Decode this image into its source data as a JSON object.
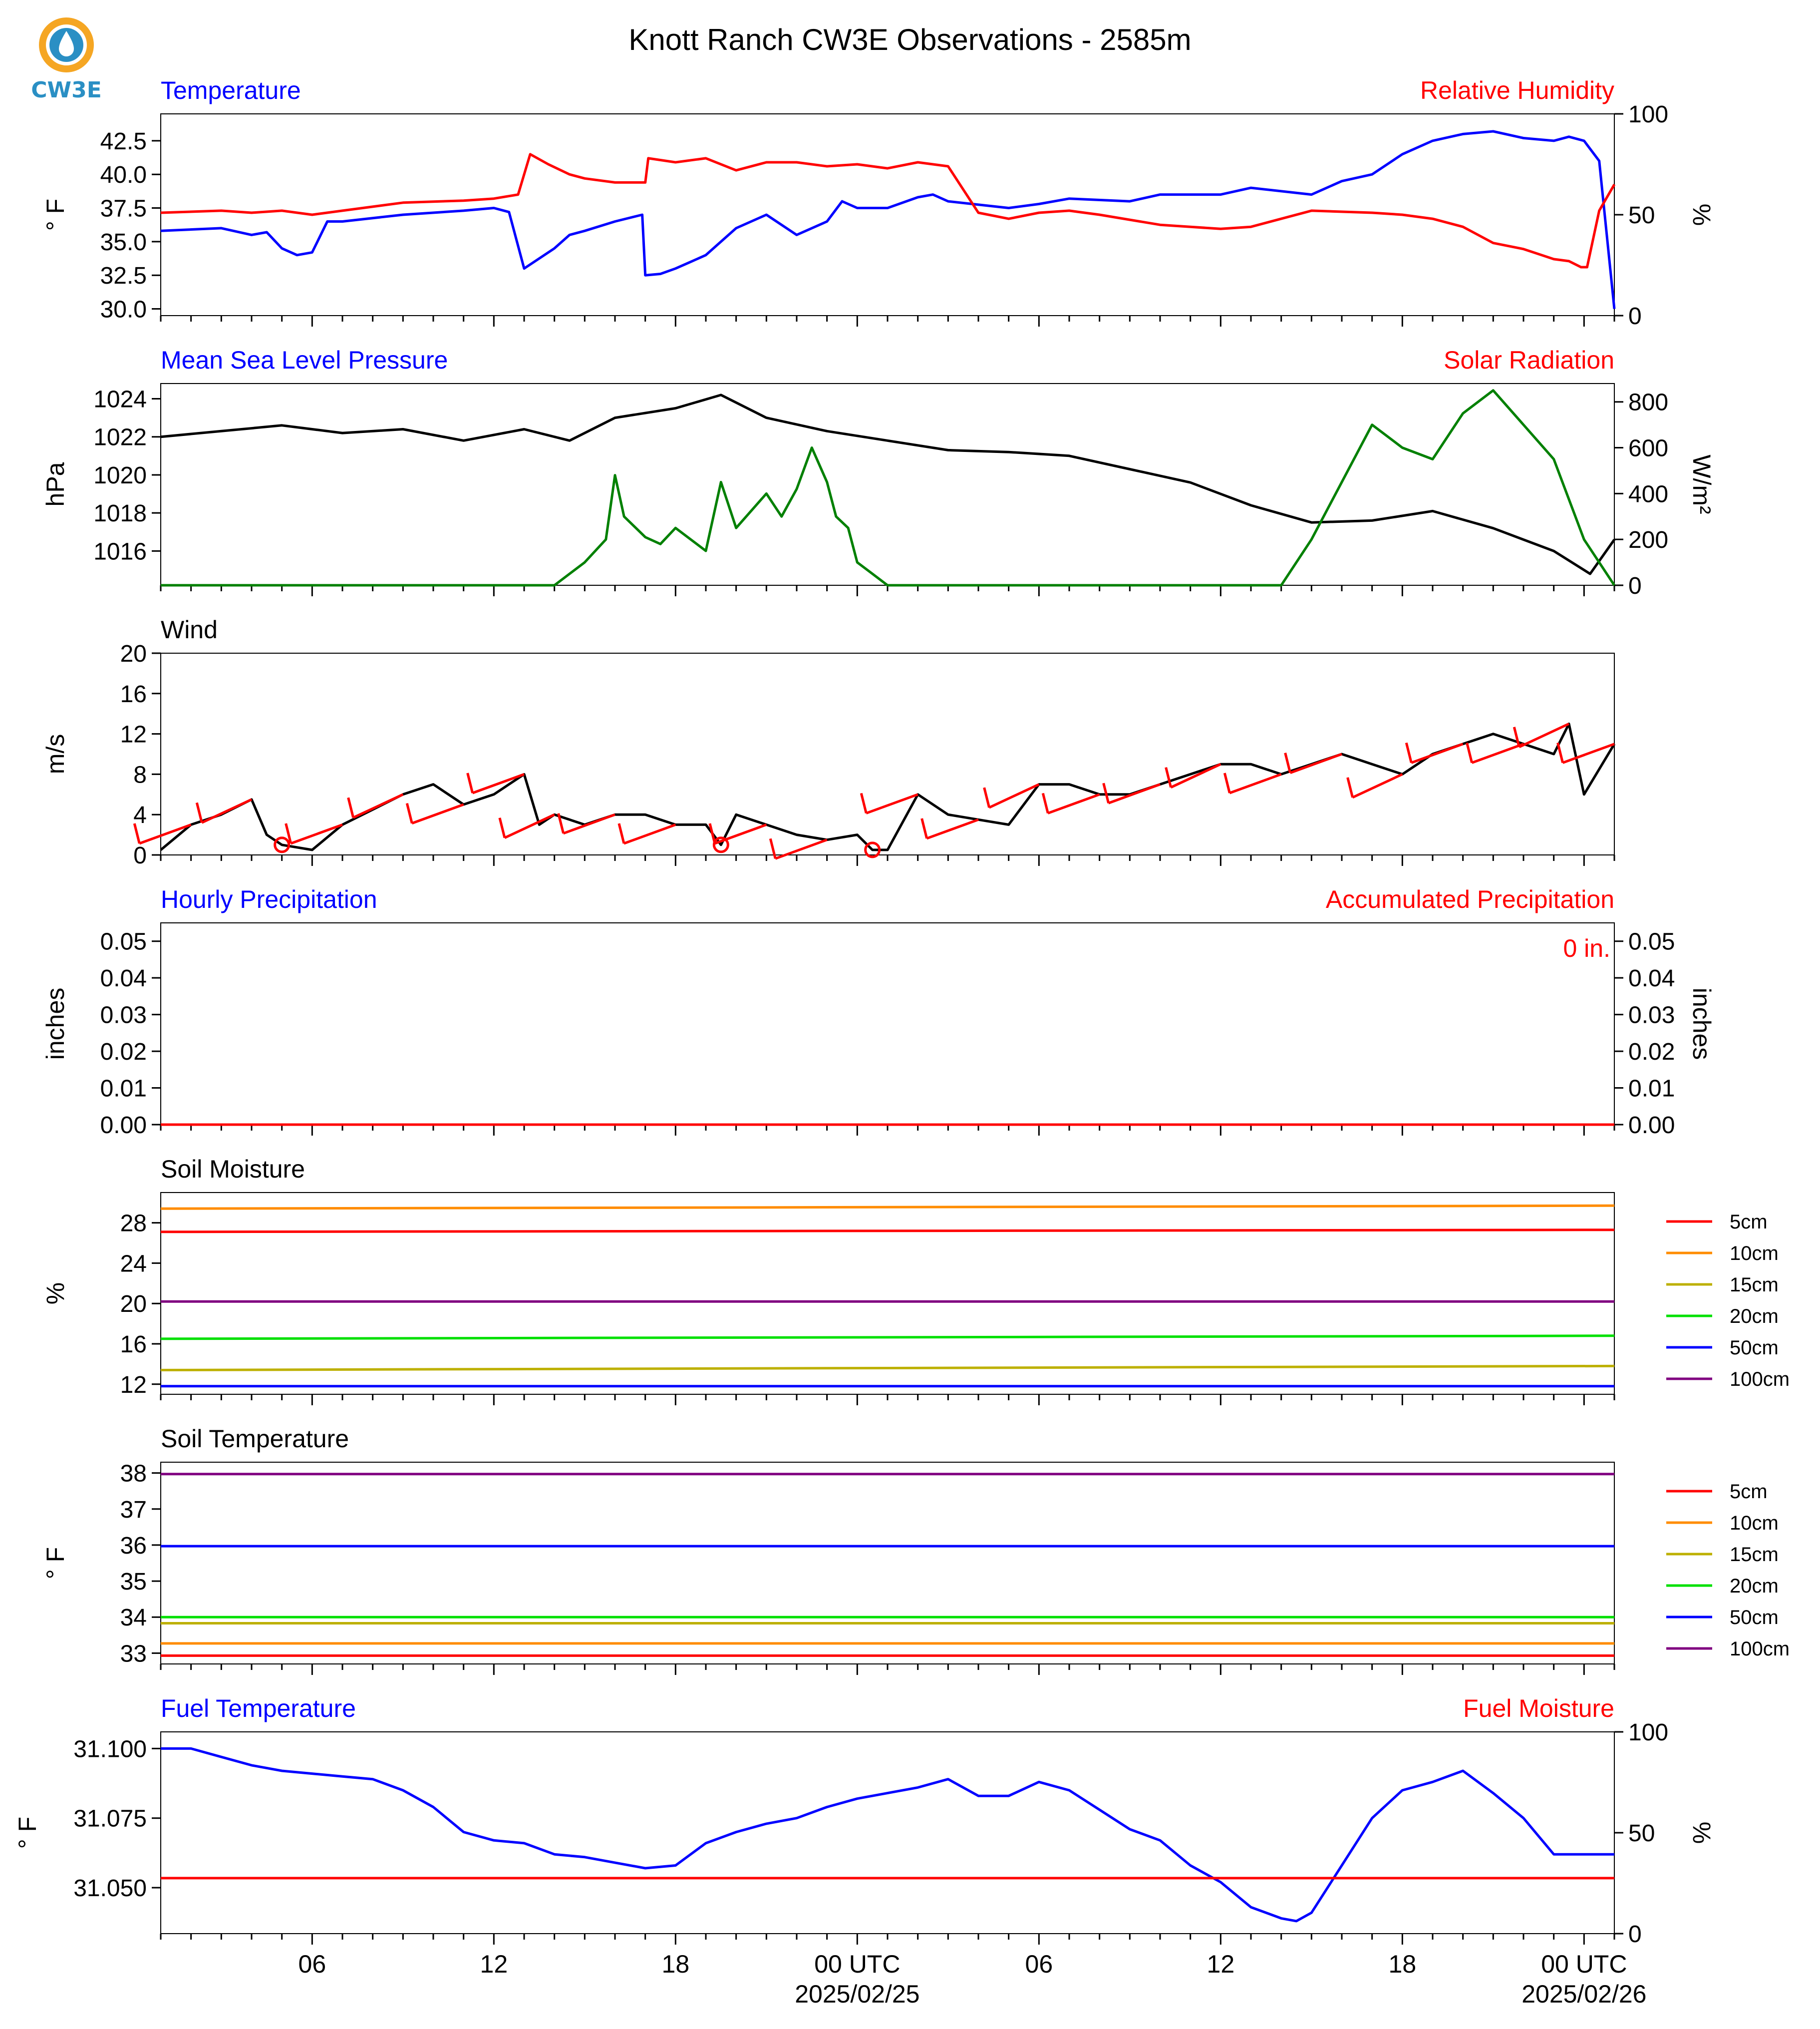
{
  "title": "Knott Ranch CW3E Observations - 2585m",
  "logo": {
    "text": "CW3E",
    "ring_color": "#f5a623",
    "drop_color": "#2a8fc4"
  },
  "x_axis": {
    "tick_labels": [
      "06",
      "12",
      "18",
      "00 UTC",
      "06",
      "12",
      "18",
      "00 UTC"
    ],
    "tick_hours": [
      6,
      12,
      18,
      24,
      30,
      36,
      42,
      48
    ],
    "date_labels": [
      "2025/02/25",
      "2025/02/26"
    ],
    "date_label_hours": [
      24,
      48
    ],
    "range_hours": [
      1,
      49
    ]
  },
  "colors": {
    "blue": "#0000ff",
    "red": "#ff0000",
    "green": "#008000",
    "black": "#000000"
  },
  "chart_data": [
    {
      "type": "line",
      "title": "Temperature",
      "title_right": "Relative Humidity",
      "ylabel": "° F",
      "ylabel_right": "%",
      "ylim": [
        29.5,
        44.5
      ],
      "yticks": [
        "30.0",
        "32.5",
        "35.0",
        "37.5",
        "40.0",
        "42.5"
      ],
      "ylim_right": [
        0,
        100
      ],
      "yticks_right": [
        "0",
        "50",
        "100"
      ],
      "series": [
        {
          "axis": "left",
          "color": "#0000ff",
          "x": [
            1,
            3,
            4,
            4.5,
            5,
            5.5,
            6,
            6.5,
            7,
            9,
            11,
            12,
            12.5,
            13,
            14,
            14.5,
            15,
            16,
            16.9,
            17,
            17.5,
            18,
            18.5,
            19,
            20,
            21,
            22,
            23,
            23.5,
            24,
            25,
            26,
            26.5,
            27,
            29,
            30,
            31,
            33,
            34,
            36,
            37,
            39,
            40,
            41,
            42,
            43,
            44,
            45,
            46,
            47,
            47.5,
            48,
            48.5,
            49
          ],
          "y": [
            35.8,
            36.0,
            35.5,
            35.7,
            34.5,
            34.0,
            34.2,
            36.5,
            36.5,
            37.0,
            37.3,
            37.5,
            37.2,
            33.0,
            34.5,
            35.5,
            35.8,
            36.5,
            37.0,
            32.5,
            32.6,
            33.0,
            33.5,
            34.0,
            36.0,
            37.0,
            35.5,
            36.5,
            38.0,
            37.5,
            37.5,
            38.3,
            38.5,
            38.0,
            37.5,
            37.8,
            38.2,
            38.0,
            38.5,
            38.5,
            39.0,
            38.5,
            39.5,
            40.0,
            41.5,
            42.5,
            43.0,
            43.2,
            42.7,
            42.5,
            42.8,
            42.5,
            41.0,
            30.0
          ]
        },
        {
          "axis": "right",
          "color": "#ff0000",
          "x": [
            1,
            3,
            4,
            5,
            6,
            7,
            9,
            11,
            12,
            12.8,
            13.2,
            13.8,
            14.5,
            15,
            16,
            17,
            17.1,
            18,
            19,
            20,
            21,
            22,
            23,
            24,
            25,
            26,
            27,
            28,
            29,
            30,
            31,
            32,
            34,
            35,
            36,
            37,
            39,
            41,
            42,
            43,
            44,
            45,
            46,
            47,
            47.5,
            47.9,
            48.1,
            48.5,
            49
          ],
          "y": [
            51,
            52,
            51,
            52,
            50,
            52,
            56,
            57,
            58,
            60,
            80,
            75,
            70,
            68,
            66,
            66,
            78,
            76,
            78,
            72,
            76,
            76,
            74,
            75,
            73,
            76,
            74,
            51,
            48,
            51,
            52,
            50,
            45,
            44,
            43,
            44,
            52,
            51,
            50,
            48,
            44,
            36,
            33,
            28,
            27,
            24,
            24,
            52,
            65
          ]
        }
      ]
    },
    {
      "type": "line",
      "title": "Mean Sea Level Pressure",
      "title_right": "Solar Radiation",
      "ylabel": "hPa",
      "ylabel_right": "W/m²",
      "ylim": [
        1014.2,
        1024.8
      ],
      "yticks": [
        "1016",
        "1018",
        "1020",
        "1022",
        "1024"
      ],
      "ylim_right": [
        0,
        880
      ],
      "yticks_right": [
        "0",
        "200",
        "400",
        "600",
        "800"
      ],
      "series": [
        {
          "axis": "left",
          "color": "#000000",
          "x": [
            1,
            3,
            5,
            7,
            9,
            11,
            13,
            14.5,
            16,
            18,
            19.5,
            21,
            23,
            25,
            27,
            29,
            31,
            33,
            35,
            37,
            39,
            41,
            43,
            45,
            47,
            48.2,
            49
          ],
          "y": [
            1022.0,
            1022.3,
            1022.6,
            1022.2,
            1022.4,
            1021.8,
            1022.4,
            1021.8,
            1023.0,
            1023.5,
            1024.2,
            1023.0,
            1022.3,
            1021.8,
            1021.3,
            1021.2,
            1021.0,
            1020.3,
            1019.6,
            1018.4,
            1017.5,
            1017.6,
            1018.1,
            1017.2,
            1016.0,
            1014.8,
            1016.6
          ]
        },
        {
          "axis": "right",
          "color": "#008000",
          "x": [
            1,
            14,
            15,
            15.7,
            16,
            16.3,
            17,
            17.5,
            18,
            19,
            19.5,
            20,
            21,
            21.5,
            22,
            22.5,
            23,
            23.3,
            23.7,
            24,
            24.5,
            25,
            38,
            39,
            40,
            41,
            42,
            43,
            44,
            45,
            46,
            47,
            48,
            49
          ],
          "y": [
            0,
            0,
            100,
            200,
            480,
            300,
            210,
            180,
            250,
            150,
            450,
            250,
            400,
            300,
            420,
            600,
            450,
            300,
            250,
            100,
            50,
            0,
            0,
            200,
            450,
            700,
            600,
            550,
            750,
            850,
            700,
            550,
            200,
            0
          ]
        }
      ]
    },
    {
      "type": "line",
      "title": "Wind",
      "ylabel": "m/s",
      "ylim": [
        0,
        20
      ],
      "yticks": [
        "0",
        "4",
        "8",
        "12",
        "16",
        "20"
      ],
      "series": [
        {
          "color": "#000000",
          "x": [
            1,
            2,
            3,
            4,
            4.5,
            5,
            6,
            7,
            8,
            9,
            10,
            11,
            12,
            13,
            13.5,
            14,
            15,
            16,
            17,
            18,
            19,
            19.5,
            20,
            21,
            22,
            23,
            24,
            24.5,
            25,
            26,
            27,
            28,
            29,
            30,
            31,
            32,
            33,
            34,
            35,
            36,
            37,
            38,
            39,
            40,
            41,
            42,
            43,
            44,
            45,
            46,
            47,
            47.5,
            48,
            49
          ],
          "y": [
            0.5,
            3,
            4,
            5.5,
            2,
            1,
            0.5,
            3,
            4.5,
            6,
            7,
            5,
            6,
            8,
            3,
            4,
            3,
            4,
            4,
            3,
            3,
            1,
            4,
            3,
            2,
            1.5,
            2,
            0.5,
            0.5,
            6,
            4,
            3.5,
            3,
            7,
            7,
            6,
            6,
            7,
            8,
            9,
            9,
            8,
            9,
            10,
            9,
            8,
            10,
            11,
            12,
            11,
            10,
            13,
            6,
            11
          ]
        }
      ],
      "barbs_color": "#ff0000"
    },
    {
      "type": "line",
      "title": "Hourly Precipitation",
      "title_right": "Accumulated Precipitation",
      "ylabel": "inches",
      "ylabel_right": "inches",
      "ylim": [
        0,
        0.055
      ],
      "yticks": [
        "0.00",
        "0.01",
        "0.02",
        "0.03",
        "0.04",
        "0.05"
      ],
      "ylim_right": [
        0,
        0.055
      ],
      "yticks_right": [
        "0.00",
        "0.01",
        "0.02",
        "0.03",
        "0.04",
        "0.05"
      ],
      "annotation": "0 in.",
      "series": [
        {
          "axis": "left",
          "color": "#0000ff",
          "x": [
            1,
            49
          ],
          "y": [
            0,
            0
          ]
        },
        {
          "axis": "right",
          "color": "#ff0000",
          "x": [
            1,
            49
          ],
          "y": [
            0,
            0
          ]
        }
      ]
    },
    {
      "type": "line",
      "title": "Soil Moisture",
      "ylabel": "%",
      "ylim": [
        11,
        31
      ],
      "yticks": [
        "12",
        "16",
        "20",
        "24",
        "28"
      ],
      "legend": [
        {
          "name": "5cm",
          "color": "#ff0000"
        },
        {
          "name": "10cm",
          "color": "#ff8c00"
        },
        {
          "name": "15cm",
          "color": "#bdb000"
        },
        {
          "name": "20cm",
          "color": "#00e000"
        },
        {
          "name": "50cm",
          "color": "#0000ff"
        },
        {
          "name": "100cm",
          "color": "#800080"
        }
      ],
      "series": [
        {
          "name": "5cm",
          "color": "#ff0000",
          "x": [
            1,
            49
          ],
          "y": [
            27.1,
            27.3
          ]
        },
        {
          "name": "10cm",
          "color": "#ff8c00",
          "x": [
            1,
            49
          ],
          "y": [
            29.4,
            29.7
          ]
        },
        {
          "name": "15cm",
          "color": "#bdb000",
          "x": [
            1,
            49
          ],
          "y": [
            13.4,
            13.8
          ]
        },
        {
          "name": "20cm",
          "color": "#00e000",
          "x": [
            1,
            49
          ],
          "y": [
            16.5,
            16.8
          ]
        },
        {
          "name": "50cm",
          "color": "#0000ff",
          "x": [
            1,
            49
          ],
          "y": [
            11.8,
            11.8
          ]
        },
        {
          "name": "100cm",
          "color": "#800080",
          "x": [
            1,
            49
          ],
          "y": [
            20.2,
            20.2
          ]
        }
      ]
    },
    {
      "type": "line",
      "title": "Soil Temperature",
      "ylabel": "° F",
      "ylim": [
        32.7,
        38.3
      ],
      "yticks": [
        "33",
        "34",
        "35",
        "36",
        "37",
        "38"
      ],
      "legend": [
        {
          "name": "5cm",
          "color": "#ff0000"
        },
        {
          "name": "10cm",
          "color": "#ff8c00"
        },
        {
          "name": "15cm",
          "color": "#bdb000"
        },
        {
          "name": "20cm",
          "color": "#00e000"
        },
        {
          "name": "50cm",
          "color": "#0000ff"
        },
        {
          "name": "100cm",
          "color": "#800080"
        }
      ],
      "series": [
        {
          "name": "5cm",
          "color": "#ff0000",
          "x": [
            1,
            49
          ],
          "y": [
            32.93,
            32.93
          ]
        },
        {
          "name": "10cm",
          "color": "#ff8c00",
          "x": [
            1,
            49
          ],
          "y": [
            33.27,
            33.27
          ]
        },
        {
          "name": "15cm",
          "color": "#bdb000",
          "x": [
            1,
            49
          ],
          "y": [
            33.83,
            33.83
          ]
        },
        {
          "name": "20cm",
          "color": "#00e000",
          "x": [
            1,
            49
          ],
          "y": [
            34.0,
            34.0
          ]
        },
        {
          "name": "50cm",
          "color": "#0000ff",
          "x": [
            1,
            49
          ],
          "y": [
            35.97,
            35.97
          ]
        },
        {
          "name": "100cm",
          "color": "#800080",
          "x": [
            1,
            49
          ],
          "y": [
            37.97,
            37.97
          ]
        }
      ]
    },
    {
      "type": "line",
      "title": "Fuel Temperature",
      "title_right": "Fuel Moisture",
      "ylabel": "° F",
      "ylabel_right": "%",
      "ylim": [
        31.0335,
        31.106
      ],
      "yticks": [
        "31.050",
        "31.075",
        "31.100"
      ],
      "ylim_right": [
        0,
        100
      ],
      "yticks_right": [
        "0",
        "50",
        "100"
      ],
      "series": [
        {
          "axis": "left",
          "color": "#0000ff",
          "x": [
            1,
            2,
            3,
            4,
            5,
            6,
            7,
            8,
            9,
            10,
            11,
            12,
            13,
            14,
            15,
            16,
            17,
            18,
            19,
            20,
            21,
            22,
            23,
            24,
            25,
            26,
            27,
            28,
            29,
            30,
            31,
            32,
            33,
            34,
            35,
            36,
            37,
            38,
            38.5,
            39,
            40,
            41,
            42,
            43,
            44,
            45,
            46,
            47,
            48,
            49
          ],
          "y": [
            31.1,
            31.1,
            31.097,
            31.094,
            31.092,
            31.091,
            31.09,
            31.089,
            31.085,
            31.079,
            31.07,
            31.067,
            31.066,
            31.062,
            31.061,
            31.059,
            31.057,
            31.058,
            31.066,
            31.07,
            31.073,
            31.075,
            31.079,
            31.082,
            31.084,
            31.086,
            31.089,
            31.083,
            31.083,
            31.088,
            31.085,
            31.078,
            31.071,
            31.067,
            31.058,
            31.052,
            31.043,
            31.039,
            31.038,
            31.041,
            31.058,
            31.075,
            31.085,
            31.088,
            31.092,
            31.084,
            31.075,
            31.062,
            31.062,
            31.062
          ]
        },
        {
          "axis": "right",
          "color": "#ff0000",
          "x": [
            1,
            49
          ],
          "y": [
            27.5,
            27.5
          ]
        }
      ]
    }
  ]
}
